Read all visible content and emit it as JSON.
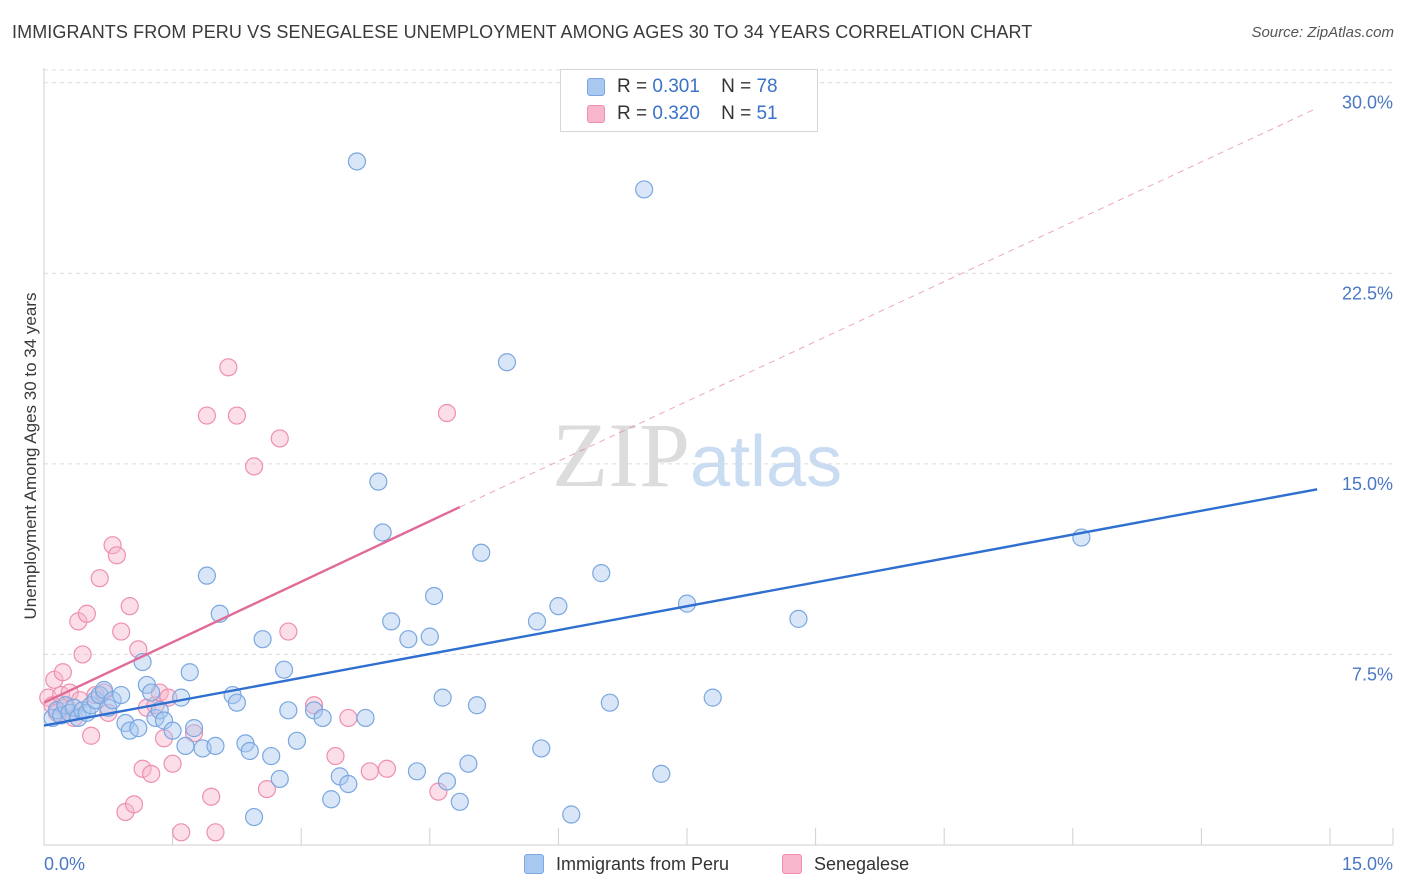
{
  "header": {
    "title": "IMMIGRANTS FROM PERU VS SENEGALESE UNEMPLOYMENT AMONG AGES 30 TO 34 YEARS CORRELATION CHART",
    "source": "Source: ZipAtlas.com"
  },
  "watermark": {
    "zip": "ZIP",
    "atlas": "atlas"
  },
  "legend": {
    "rows": [
      {
        "r_label": "R =",
        "r_value": "0.301",
        "n_label": "N =",
        "n_value": "78",
        "color": "#a8c8f0"
      },
      {
        "r_label": "R =",
        "r_value": "0.320",
        "n_label": "N =",
        "n_value": "51",
        "color": "#f7b6cb"
      }
    ]
  },
  "colors": {
    "blue_fill": "#a8c8f0",
    "blue_stroke": "#7aa7e0",
    "blue_line": "#2f6fcf",
    "pink_fill": "#f7b6cb",
    "pink_stroke": "#ee8fb0",
    "pink_line": "#e06a98",
    "tick_text": "#4a78c4",
    "grid": "#dcdcdc"
  },
  "chart_data": {
    "type": "scatter",
    "ylabel": "Unemployment Among Ages 30 to 34 years",
    "x_tick_labels": [
      "0.0%",
      "15.0%"
    ],
    "y_tick_labels": [
      "7.5%",
      "15.0%",
      "22.5%",
      "30.0%"
    ],
    "y_ticks": [
      7.5,
      15.0,
      22.5,
      30.0
    ],
    "xlim": [
      0,
      15.0
    ],
    "ylim": [
      0,
      30.5
    ],
    "grid": "horizontal dashed",
    "legend_placement": "top-center",
    "series": [
      {
        "name": "Immigrants from Peru",
        "R": 0.301,
        "N": 78,
        "trend": {
          "x0": 0.0,
          "y0": 4.7,
          "x1": 14.85,
          "y1": 14.0,
          "style": "solid"
        },
        "points": [
          [
            0.1,
            5.0
          ],
          [
            0.15,
            5.3
          ],
          [
            0.2,
            5.1
          ],
          [
            0.25,
            5.5
          ],
          [
            0.3,
            5.2
          ],
          [
            0.35,
            5.4
          ],
          [
            0.4,
            5.0
          ],
          [
            0.45,
            5.3
          ],
          [
            0.5,
            5.2
          ],
          [
            0.55,
            5.5
          ],
          [
            0.6,
            5.7
          ],
          [
            0.65,
            5.9
          ],
          [
            0.7,
            6.1
          ],
          [
            0.75,
            5.4
          ],
          [
            0.8,
            5.7
          ],
          [
            0.9,
            5.9
          ],
          [
            0.95,
            4.8
          ],
          [
            1.0,
            4.5
          ],
          [
            1.1,
            4.6
          ],
          [
            1.15,
            7.2
          ],
          [
            1.2,
            6.3
          ],
          [
            1.25,
            6.0
          ],
          [
            1.3,
            5.0
          ],
          [
            1.35,
            5.3
          ],
          [
            1.4,
            4.9
          ],
          [
            1.5,
            4.5
          ],
          [
            1.6,
            5.8
          ],
          [
            1.65,
            3.9
          ],
          [
            1.7,
            6.8
          ],
          [
            1.75,
            4.6
          ],
          [
            1.85,
            3.8
          ],
          [
            1.9,
            10.6
          ],
          [
            2.0,
            3.9
          ],
          [
            2.05,
            9.1
          ],
          [
            2.2,
            5.9
          ],
          [
            2.25,
            5.6
          ],
          [
            2.35,
            4.0
          ],
          [
            2.4,
            3.7
          ],
          [
            2.45,
            1.1
          ],
          [
            2.55,
            8.1
          ],
          [
            2.65,
            3.5
          ],
          [
            2.75,
            2.6
          ],
          [
            2.8,
            6.9
          ],
          [
            2.85,
            5.3
          ],
          [
            2.95,
            4.1
          ],
          [
            3.15,
            5.3
          ],
          [
            3.25,
            5.0
          ],
          [
            3.35,
            1.8
          ],
          [
            3.45,
            2.7
          ],
          [
            3.55,
            2.4
          ],
          [
            3.65,
            26.9
          ],
          [
            3.75,
            5.0
          ],
          [
            3.9,
            14.3
          ],
          [
            3.95,
            12.3
          ],
          [
            4.05,
            8.8
          ],
          [
            4.25,
            8.1
          ],
          [
            4.35,
            2.9
          ],
          [
            4.5,
            8.2
          ],
          [
            4.55,
            9.8
          ],
          [
            4.65,
            5.8
          ],
          [
            4.7,
            2.5
          ],
          [
            4.85,
            1.7
          ],
          [
            4.95,
            3.2
          ],
          [
            5.05,
            5.5
          ],
          [
            5.1,
            11.5
          ],
          [
            5.4,
            19.0
          ],
          [
            5.75,
            8.8
          ],
          [
            5.8,
            3.8
          ],
          [
            6.0,
            9.4
          ],
          [
            6.15,
            1.2
          ],
          [
            6.5,
            10.7
          ],
          [
            6.6,
            5.6
          ],
          [
            7.0,
            25.8
          ],
          [
            7.2,
            2.8
          ],
          [
            7.5,
            9.5
          ],
          [
            7.8,
            5.8
          ],
          [
            8.8,
            8.9
          ],
          [
            12.1,
            12.1
          ]
        ]
      },
      {
        "name": "Senegalese",
        "R": 0.32,
        "N": 51,
        "trend": {
          "x0": 0.0,
          "y0": 5.6,
          "x1": 4.85,
          "y1": 13.3,
          "style": "solid"
        },
        "trend_extension": {
          "x0": 4.85,
          "y0": 13.3,
          "x1": 14.85,
          "y1": 29.0,
          "style": "dashed"
        },
        "points": [
          [
            0.05,
            5.8
          ],
          [
            0.1,
            5.5
          ],
          [
            0.12,
            6.5
          ],
          [
            0.15,
            5.2
          ],
          [
            0.2,
            5.9
          ],
          [
            0.22,
            6.8
          ],
          [
            0.25,
            5.4
          ],
          [
            0.3,
            6.0
          ],
          [
            0.35,
            5.0
          ],
          [
            0.4,
            8.8
          ],
          [
            0.42,
            5.7
          ],
          [
            0.45,
            7.5
          ],
          [
            0.5,
            9.1
          ],
          [
            0.55,
            4.3
          ],
          [
            0.6,
            5.9
          ],
          [
            0.65,
            10.5
          ],
          [
            0.7,
            6.0
          ],
          [
            0.75,
            5.2
          ],
          [
            0.8,
            11.8
          ],
          [
            0.85,
            11.4
          ],
          [
            0.9,
            8.4
          ],
          [
            0.95,
            1.3
          ],
          [
            1.0,
            9.4
          ],
          [
            1.05,
            1.6
          ],
          [
            1.1,
            7.7
          ],
          [
            1.15,
            3.0
          ],
          [
            1.2,
            5.4
          ],
          [
            1.25,
            2.8
          ],
          [
            1.3,
            5.5
          ],
          [
            1.35,
            6.0
          ],
          [
            1.4,
            4.2
          ],
          [
            1.45,
            5.8
          ],
          [
            1.5,
            3.2
          ],
          [
            1.6,
            0.5
          ],
          [
            1.75,
            4.4
          ],
          [
            1.9,
            16.9
          ],
          [
            1.95,
            1.9
          ],
          [
            2.0,
            0.5
          ],
          [
            2.15,
            18.8
          ],
          [
            2.25,
            16.9
          ],
          [
            2.45,
            14.9
          ],
          [
            2.6,
            2.2
          ],
          [
            2.75,
            16.0
          ],
          [
            2.85,
            8.4
          ],
          [
            3.15,
            5.5
          ],
          [
            3.4,
            3.5
          ],
          [
            3.55,
            5.0
          ],
          [
            3.8,
            2.9
          ],
          [
            4.0,
            3.0
          ],
          [
            4.6,
            2.1
          ],
          [
            4.7,
            17.0
          ]
        ]
      }
    ]
  },
  "bottom_legend": [
    {
      "label": "Immigrants from Peru",
      "color": "#a8c8f0"
    },
    {
      "label": "Senegalese",
      "color": "#f7b6cb"
    }
  ]
}
